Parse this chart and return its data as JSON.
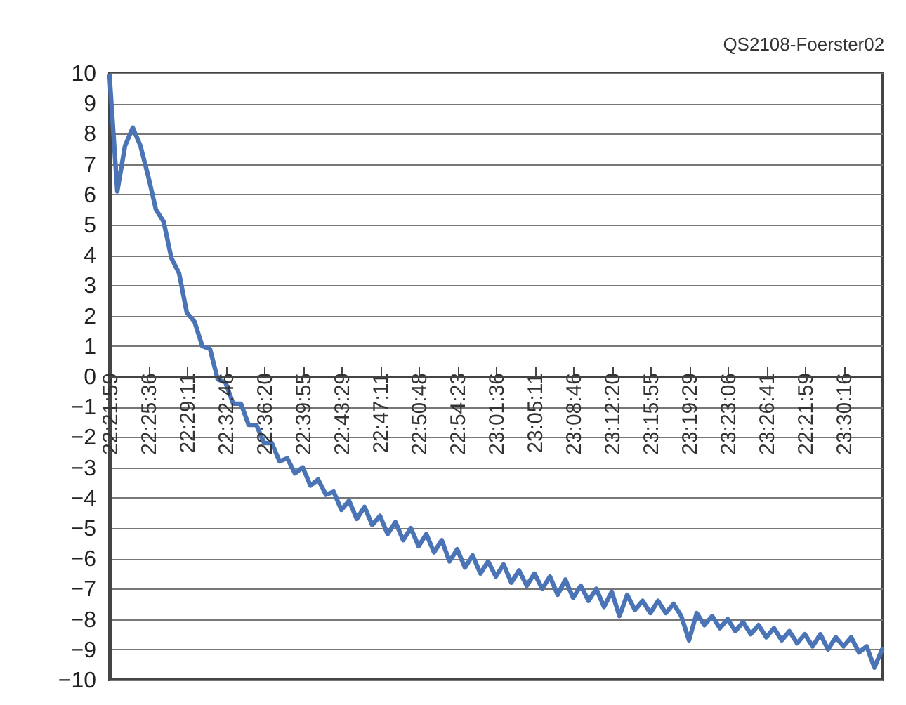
{
  "chart_data": {
    "type": "line",
    "title": "QS2108-Foerster02",
    "categories": [
      "22:21:59",
      null,
      null,
      null,
      null,
      "22:25:36",
      null,
      null,
      null,
      null,
      "22:29:11",
      null,
      null,
      null,
      null,
      "22:32:46",
      null,
      null,
      null,
      null,
      "22:36:20",
      null,
      null,
      null,
      null,
      "22:39:55",
      null,
      null,
      null,
      null,
      "22:43:29",
      null,
      null,
      null,
      null,
      "22:47:11",
      null,
      null,
      null,
      null,
      "22:50:48",
      null,
      null,
      null,
      null,
      "22:54:23",
      null,
      null,
      null,
      null,
      "23:01:36",
      null,
      null,
      null,
      null,
      "23:05:11",
      null,
      null,
      null,
      null,
      "23:08:46",
      null,
      null,
      null,
      null,
      "23:12:20",
      null,
      null,
      null,
      null,
      "23:15:55",
      null,
      null,
      null,
      null,
      "23:19:29",
      null,
      null,
      null,
      null,
      "23:23:06",
      null,
      null,
      null,
      null,
      "23:26:41",
      null,
      null,
      null,
      null,
      "22:21:59",
      null,
      null,
      null,
      null,
      "23:30:16",
      null,
      null,
      null,
      null,
      null
    ],
    "series": [
      {
        "color": "#4a74b6",
        "values": [
          9.9,
          6.1,
          7.6,
          8.2,
          7.6,
          6.6,
          5.5,
          5.1,
          3.9,
          3.4,
          2.1,
          1.8,
          1.0,
          0.9,
          -0.1,
          -0.2,
          -0.9,
          -0.9,
          -1.6,
          -1.6,
          -2.2,
          -2.2,
          -2.8,
          -2.7,
          -3.2,
          -3.0,
          -3.6,
          -3.4,
          -3.9,
          -3.8,
          -4.4,
          -4.1,
          -4.7,
          -4.3,
          -4.9,
          -4.6,
          -5.2,
          -4.8,
          -5.4,
          -5.0,
          -5.6,
          -5.2,
          -5.8,
          -5.4,
          -6.1,
          -5.7,
          -6.3,
          -5.9,
          -6.5,
          -6.1,
          -6.6,
          -6.2,
          -6.8,
          -6.4,
          -6.9,
          -6.5,
          -7.0,
          -6.6,
          -7.2,
          -6.7,
          -7.3,
          -6.9,
          -7.4,
          -7.0,
          -7.6,
          -7.1,
          -7.9,
          -7.2,
          -7.7,
          -7.4,
          -7.8,
          -7.4,
          -7.8,
          -7.5,
          -7.9,
          -8.7,
          -7.8,
          -8.2,
          -7.9,
          -8.3,
          -8.0,
          -8.4,
          -8.1,
          -8.5,
          -8.2,
          -8.6,
          -8.3,
          -8.7,
          -8.4,
          -8.8,
          -8.5,
          -8.9,
          -8.5,
          -9.0,
          -8.6,
          -8.9,
          -8.6,
          -9.1,
          -8.9,
          -9.6,
          -9.0
        ]
      }
    ],
    "ylim": [
      -10,
      10
    ],
    "yticks": [
      -10,
      -9,
      -8,
      -7,
      -6,
      -5,
      -4,
      -3,
      -2,
      -1,
      0,
      1,
      2,
      3,
      4,
      5,
      6,
      7,
      8,
      9,
      10
    ],
    "grid": "y"
  }
}
